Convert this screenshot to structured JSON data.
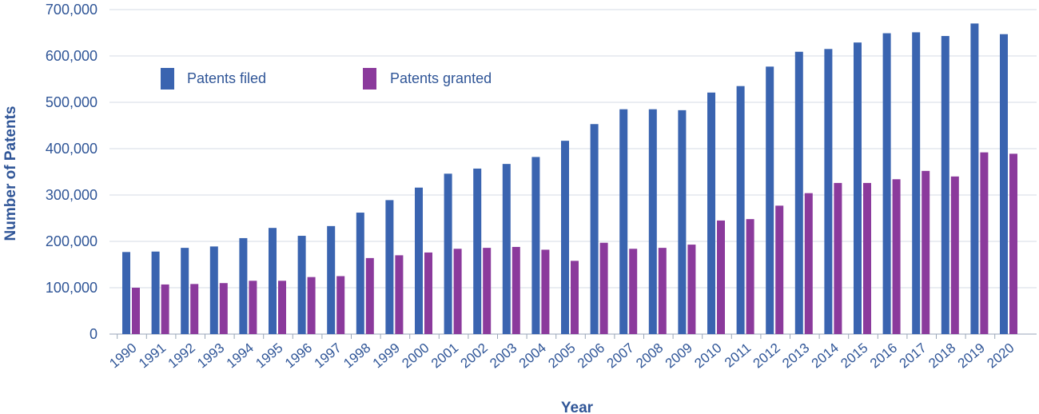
{
  "chart_data": {
    "type": "bar",
    "title": "",
    "xlabel": "Year",
    "ylabel": "Number of Patents",
    "ylim": [
      0,
      700000
    ],
    "yticks": [
      0,
      100000,
      200000,
      300000,
      400000,
      500000,
      600000,
      700000
    ],
    "ytick_labels": [
      "0",
      "100,000",
      "200,000",
      "300,000",
      "400,000",
      "500,000",
      "600,000",
      "700,000"
    ],
    "grid": true,
    "legend_position": "top-left",
    "categories": [
      "1990",
      "1991",
      "1992",
      "1993",
      "1994",
      "1995",
      "1996",
      "1997",
      "1998",
      "1999",
      "2000",
      "2001",
      "2002",
      "2003",
      "2004",
      "2005",
      "2006",
      "2007",
      "2008",
      "2009",
      "2010",
      "2011",
      "2012",
      "2013",
      "2014",
      "2015",
      "2016",
      "2017",
      "2018",
      "2019",
      "2020"
    ],
    "series": [
      {
        "name": "Patents filed",
        "color": "#3a64b0",
        "values": [
          177000,
          178000,
          186000,
          189000,
          207000,
          229000,
          212000,
          233000,
          262000,
          289000,
          316000,
          346000,
          357000,
          367000,
          382000,
          417000,
          453000,
          485000,
          485000,
          483000,
          521000,
          535000,
          577000,
          609000,
          615000,
          629000,
          649000,
          651000,
          643000,
          670000,
          647000
        ]
      },
      {
        "name": "Patents granted",
        "color": "#8b3a9c",
        "values": [
          100000,
          107000,
          108000,
          110000,
          115000,
          115000,
          123000,
          125000,
          164000,
          170000,
          176000,
          184000,
          186000,
          188000,
          182000,
          158000,
          197000,
          184000,
          186000,
          193000,
          245000,
          248000,
          277000,
          304000,
          326000,
          326000,
          334000,
          352000,
          340000,
          392000,
          389000
        ]
      }
    ]
  }
}
